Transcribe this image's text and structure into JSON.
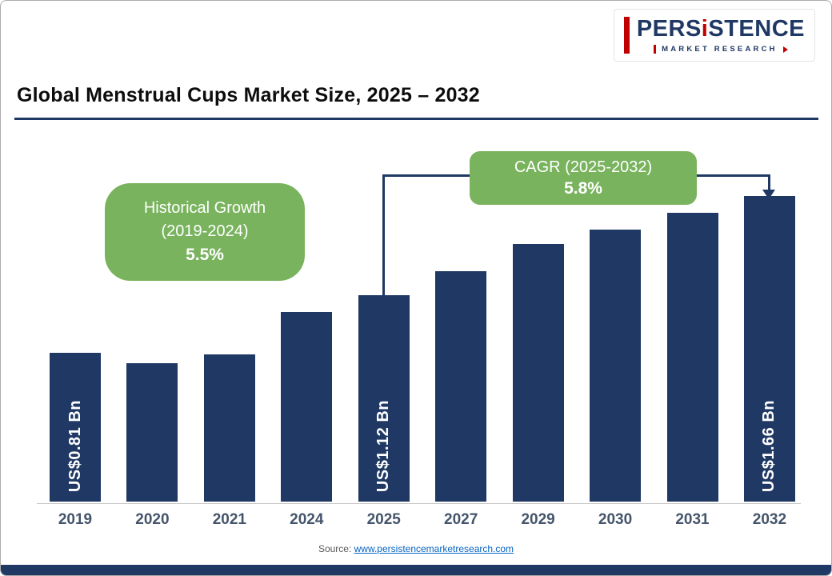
{
  "logo": {
    "brand_prefix": "PERS",
    "brand_i": "i",
    "brand_suffix": "STENCE",
    "subtitle": "MARKET RESEARCH"
  },
  "chart_data": {
    "type": "bar",
    "title": "Global Menstrual Cups Market Size, 2025 – 2032",
    "unit": "US$ Bn",
    "categories": [
      "2019",
      "2020",
      "2021",
      "2024",
      "2025",
      "2027",
      "2029",
      "2030",
      "2031",
      "2032"
    ],
    "values": [
      0.81,
      0.75,
      0.8,
      1.03,
      1.12,
      1.25,
      1.4,
      1.48,
      1.57,
      1.66
    ],
    "value_labels": [
      "US$0.81 Bn",
      "",
      "",
      "",
      "US$1.12 Bn",
      "",
      "",
      "",
      "",
      "US$1.66 Bn"
    ],
    "ylim": [
      0,
      1.8
    ],
    "grid": false,
    "legend": false,
    "annotations": [
      {
        "line1": "Historical Growth",
        "line2": "(2019-2024)",
        "value": "5.5%"
      },
      {
        "line1": "CAGR (2025-2032)",
        "value": "5.8%"
      }
    ]
  },
  "source": {
    "prefix": "Source:",
    "link_text": "www.persistencemarketresearch.com"
  },
  "colors": {
    "bar": "#1F3864",
    "accent_green": "#79B35E",
    "brand_navy": "#1F3864",
    "brand_red": "#C00000",
    "link_blue": "#0563C1"
  }
}
